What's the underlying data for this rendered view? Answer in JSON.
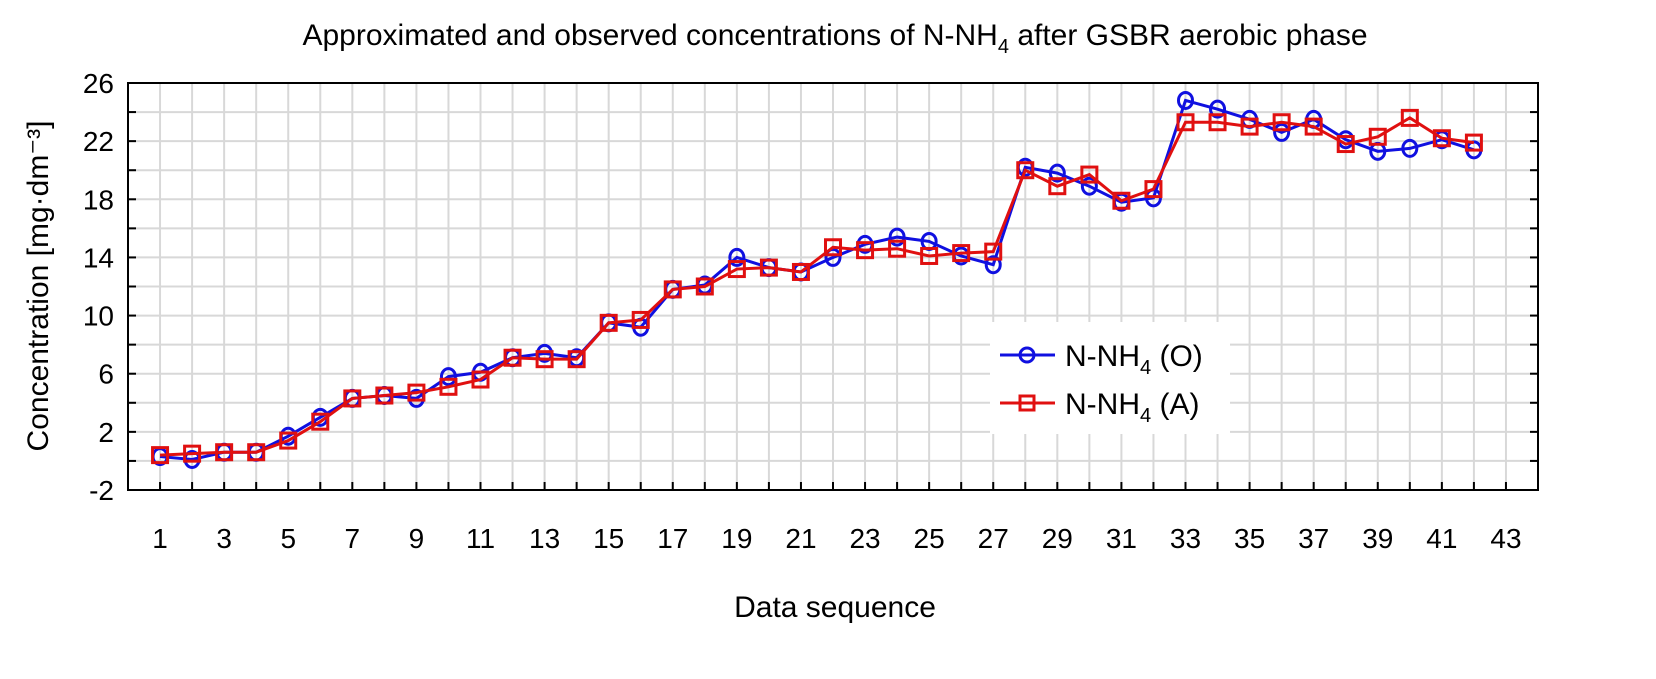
{
  "chart_data": {
    "type": "line",
    "title": {
      "prefix": "Approximated and observed concentrations of N-NH",
      "sub": "4",
      "suffix": " after GSBR aerobic phase"
    },
    "xlabel": "Data sequence",
    "ylabel": "Concentration [mg·dm⁻³]",
    "xlim": [
      0,
      44
    ],
    "ylim": [
      -2,
      26
    ],
    "x_ticks": [
      "1",
      "3",
      "5",
      "7",
      "9",
      "11",
      "13",
      "15",
      "17",
      "19",
      "21",
      "23",
      "25",
      "27",
      "29",
      "31",
      "33",
      "35",
      "37",
      "39",
      "41",
      "43"
    ],
    "y_ticks": [
      "-2",
      "2",
      "6",
      "10",
      "14",
      "18",
      "22",
      "26"
    ],
    "grid": true,
    "legend_position": "center-right",
    "x": [
      1,
      2,
      3,
      4,
      5,
      6,
      7,
      8,
      9,
      10,
      11,
      12,
      13,
      14,
      15,
      16,
      17,
      18,
      19,
      20,
      21,
      22,
      23,
      24,
      25,
      26,
      27,
      28,
      29,
      30,
      31,
      32,
      33,
      34,
      35,
      36,
      37,
      38,
      39,
      40,
      41,
      42
    ],
    "series": [
      {
        "name": "N-NH4 (O)",
        "legend_main": "N-NH",
        "legend_sub": "4",
        "legend_suffix": " (O)",
        "color": "#1010e0",
        "marker": "circle",
        "values": [
          0.3,
          0.1,
          0.6,
          0.6,
          1.7,
          3.0,
          4.3,
          4.5,
          4.3,
          5.8,
          6.1,
          7.1,
          7.4,
          7.1,
          9.5,
          9.2,
          11.8,
          12.1,
          14.0,
          13.3,
          13.0,
          14.0,
          14.9,
          15.4,
          15.1,
          14.1,
          13.5,
          20.2,
          19.8,
          18.9,
          17.8,
          18.1,
          24.8,
          24.2,
          23.5,
          22.6,
          23.5,
          22.1,
          21.3,
          21.5,
          22.1,
          21.4
        ]
      },
      {
        "name": "N-NH4 (A)",
        "legend_main": "N-NH",
        "legend_sub": "4",
        "legend_suffix": " (A)",
        "color": "#e01010",
        "marker": "square",
        "values": [
          0.4,
          0.5,
          0.6,
          0.6,
          1.4,
          2.7,
          4.3,
          4.5,
          4.7,
          5.1,
          5.6,
          7.1,
          7.0,
          7.0,
          9.5,
          9.7,
          11.8,
          12.0,
          13.2,
          13.3,
          13.0,
          14.7,
          14.5,
          14.6,
          14.1,
          14.3,
          14.4,
          20.0,
          18.9,
          19.7,
          17.9,
          18.7,
          23.3,
          23.3,
          23.0,
          23.3,
          23.0,
          21.8,
          22.3,
          23.6,
          22.2,
          21.9
        ]
      }
    ]
  }
}
